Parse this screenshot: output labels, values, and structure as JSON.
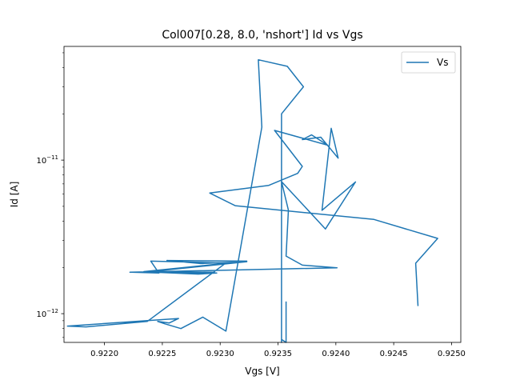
{
  "chart_data": {
    "type": "line",
    "title": "Col007[0.28, 8.0, 'nshort'] Id vs Vgs",
    "xlabel": "Vgs [V]",
    "ylabel": "Id [A]",
    "xlim": [
      0.92165,
      0.92508
    ],
    "ylim": [
      6.5e-13,
      5.5e-11
    ],
    "yscale": "log",
    "grid": false,
    "legend_loc": "upper right",
    "x_ticks": [
      {
        "value": 0.922,
        "label": "0.9220"
      },
      {
        "value": 0.9225,
        "label": "0.9225"
      },
      {
        "value": 0.923,
        "label": "0.9230"
      },
      {
        "value": 0.9235,
        "label": "0.9235"
      },
      {
        "value": 0.924,
        "label": "0.9240"
      },
      {
        "value": 0.9245,
        "label": "0.9245"
      },
      {
        "value": 0.925,
        "label": "0.9250"
      }
    ],
    "y_ticks": [
      {
        "value": 1e-12,
        "base": "10",
        "exp": "−12"
      },
      {
        "value": 1e-11,
        "base": "10",
        "exp": "−11"
      }
    ],
    "series": [
      {
        "name": "Vs",
        "color": "#1f77b4",
        "points": [
          [
            0.92471,
            1.12e-12
          ],
          [
            0.92469,
            2.13e-12
          ],
          [
            0.92488,
            3.09e-12
          ],
          [
            0.92433,
            4.11e-12
          ],
          [
            0.92313,
            5.05e-12
          ],
          [
            0.92291,
            6.1e-12
          ],
          [
            0.92342,
            6.85e-12
          ],
          [
            0.92367,
            8.2e-12
          ],
          [
            0.92371,
            9.1e-12
          ],
          [
            0.92347,
            1.56e-11
          ],
          [
            0.92393,
            1.25e-11
          ],
          [
            0.92379,
            1.46e-11
          ],
          [
            0.92371,
            1.36e-11
          ],
          [
            0.92387,
            1.41e-11
          ],
          [
            0.92402,
            1.03e-11
          ],
          [
            0.92396,
            1.61e-11
          ],
          [
            0.92388,
            4.71e-12
          ],
          [
            0.92417,
            7.21e-12
          ],
          [
            0.92391,
            3.56e-12
          ],
          [
            0.92353,
            7.24e-12
          ],
          [
            0.92359,
            4.72e-12
          ],
          [
            0.92357,
            2.37e-12
          ],
          [
            0.92371,
            2.07e-12
          ],
          [
            0.92401,
            1.99e-12
          ],
          [
            0.92222,
            1.86e-12
          ],
          [
            0.92295,
            1.86e-12
          ],
          [
            0.92234,
            1.88e-12
          ],
          [
            0.92323,
            2.2e-12
          ],
          [
            0.92254,
            2.22e-12
          ],
          [
            0.92283,
            2.12e-12
          ],
          [
            0.92323,
            2.18e-12
          ],
          [
            0.92237,
            1.87e-12
          ],
          [
            0.92281,
            1.81e-12
          ],
          [
            0.92297,
            1.84e-12
          ],
          [
            0.92223,
            1.86e-12
          ],
          [
            0.92247,
            1.84e-12
          ],
          [
            0.9224,
            2.2e-12
          ],
          [
            0.9226,
            2.18e-12
          ],
          [
            0.92305,
            2.14e-12
          ],
          [
            0.92237,
            8.9e-13
          ],
          [
            0.92184,
            8.2e-13
          ],
          [
            0.92168,
            8.3e-13
          ],
          [
            0.92264,
            9.3e-13
          ],
          [
            0.92256,
            8.7e-13
          ],
          [
            0.92246,
            8.9e-13
          ],
          [
            0.92252,
            8.6e-13
          ],
          [
            0.92266,
            8e-13
          ],
          [
            0.92285,
            9.5e-13
          ],
          [
            0.92305,
            7.7e-13
          ],
          [
            0.92336,
            1.64e-11
          ],
          [
            0.92333,
            4.5e-11
          ],
          [
            0.92358,
            4.08e-11
          ],
          [
            0.92372,
            3e-11
          ],
          [
            0.92353,
            2e-11
          ],
          [
            0.92353,
            6.5e-13
          ],
          [
            0.92353,
            6.8e-13
          ],
          [
            0.92357,
            6.5e-13
          ],
          [
            0.92357,
            1.2e-12
          ]
        ]
      }
    ]
  }
}
